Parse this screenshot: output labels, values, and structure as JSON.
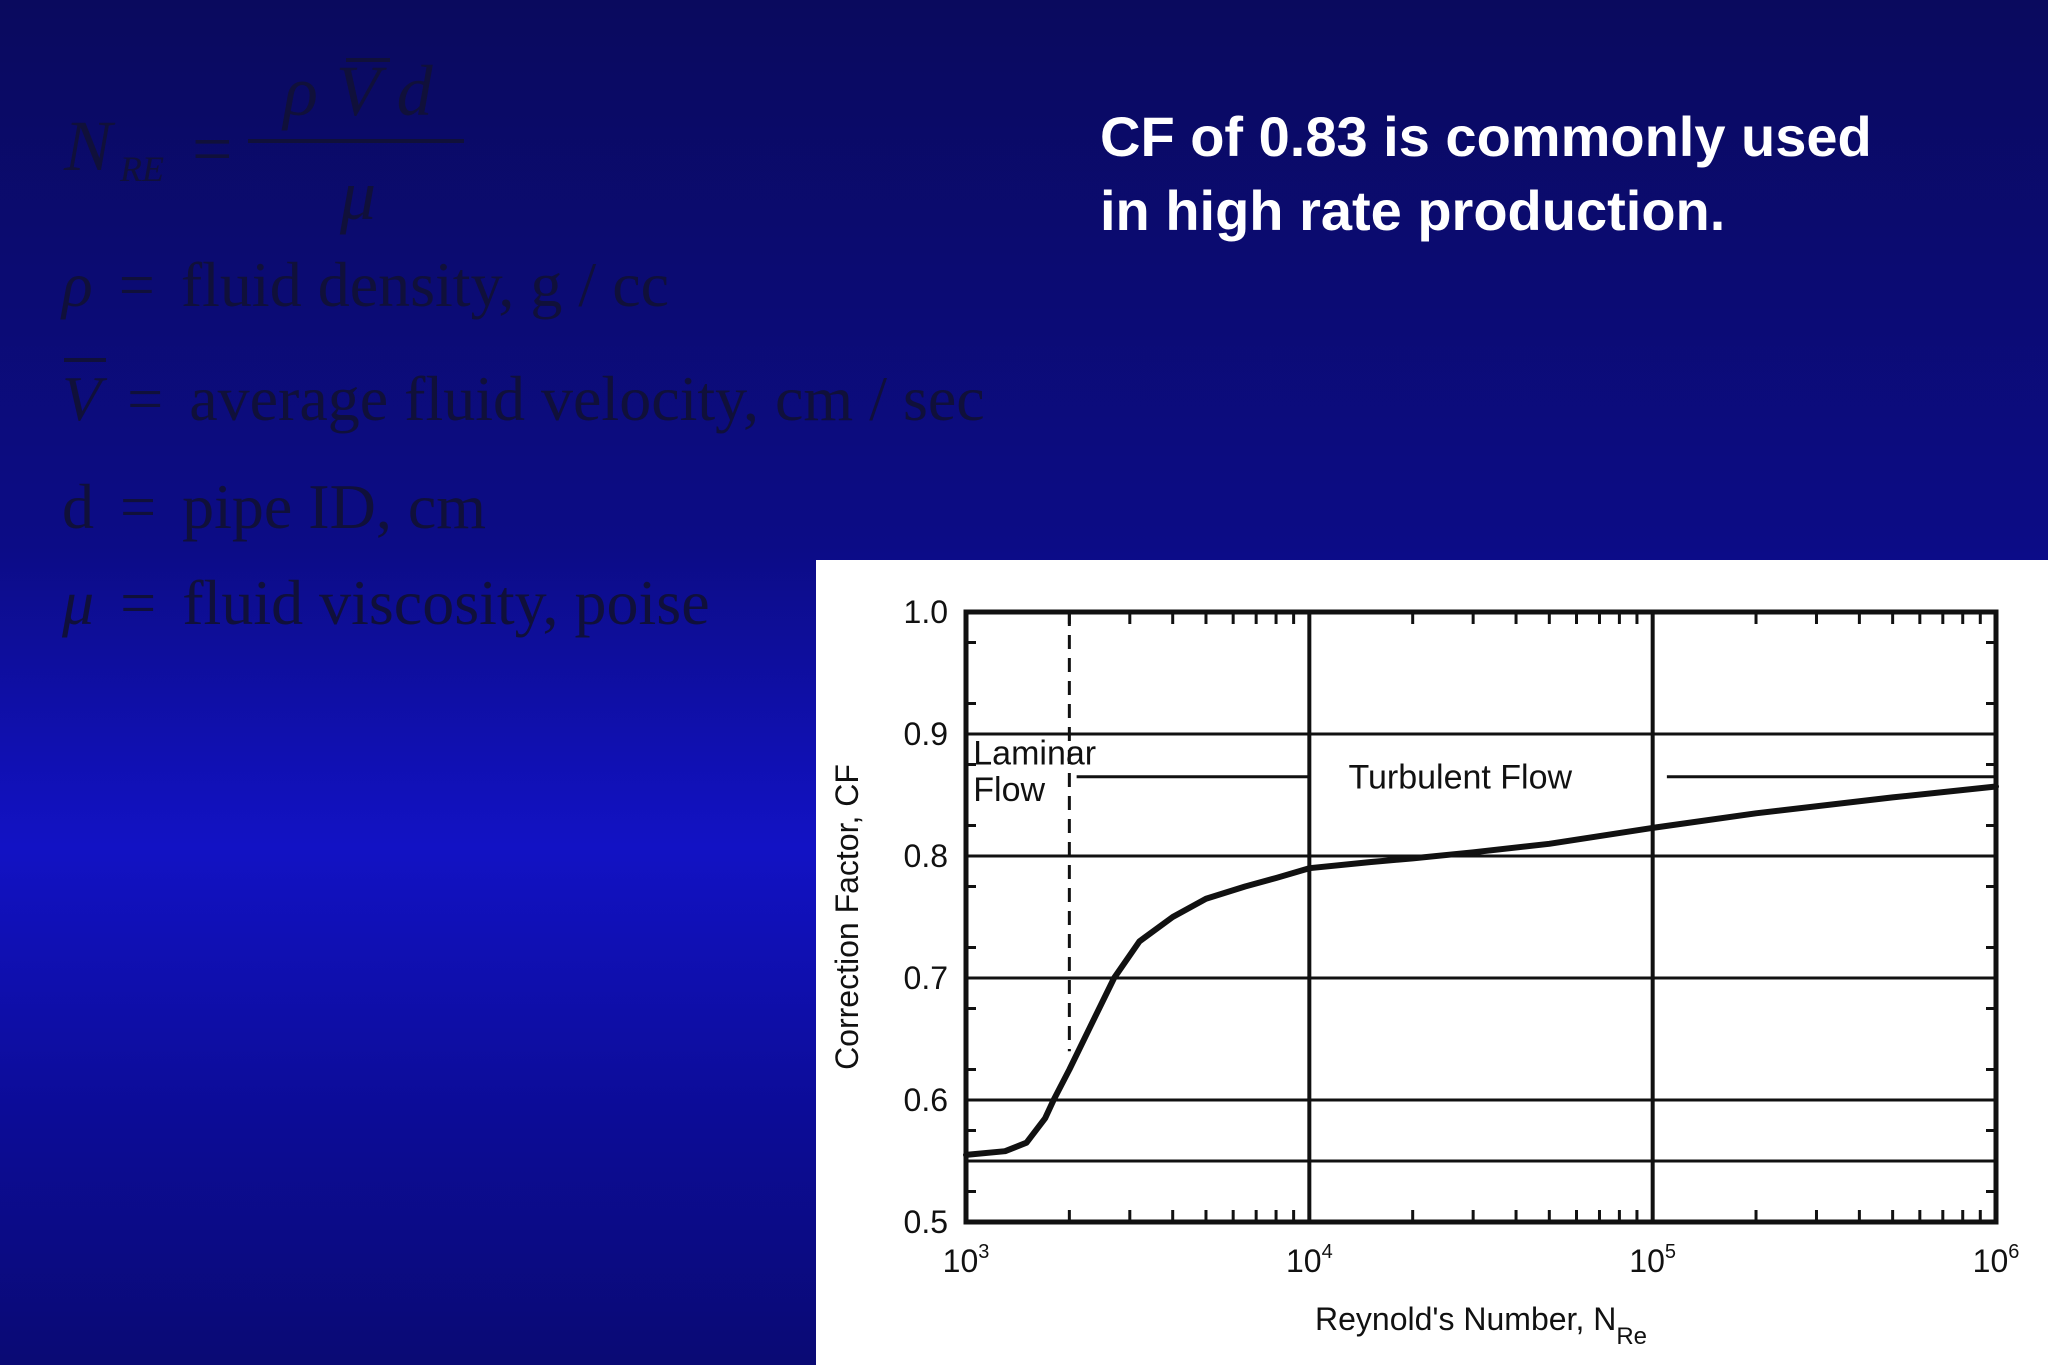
{
  "formula": {
    "lhs_symbol": "N",
    "lhs_subscript": "RE",
    "equals": "=",
    "numerator": "ρ V d",
    "denominator": "μ"
  },
  "definitions": [
    {
      "symbol": "ρ",
      "text": "fluid density,  g / cc"
    },
    {
      "symbol": "V",
      "text": "average fluid velocity,  cm / sec"
    },
    {
      "symbol": "d",
      "text": "pipe ID,  cm"
    },
    {
      "symbol": "μ",
      "text": "fluid viscosity,  poise"
    }
  ],
  "note": {
    "line1": "CF of 0.83 is commonly used",
    "line2": "in high rate production."
  },
  "chart_data": {
    "type": "line",
    "xlabel": "Reynold's Number, N",
    "xlabel_subscript": "Re",
    "ylabel": "Correction Factor, CF",
    "x_scale": "log",
    "xlim": [
      1000,
      1000000
    ],
    "ylim": [
      0.5,
      1.0
    ],
    "x_ticks": [
      {
        "value": 1000,
        "base": "10",
        "exp": "3"
      },
      {
        "value": 10000,
        "base": "10",
        "exp": "4"
      },
      {
        "value": 100000,
        "base": "10",
        "exp": "5"
      },
      {
        "value": 1000000,
        "base": "10",
        "exp": "6"
      }
    ],
    "y_ticks": [
      {
        "value": 0.5,
        "label": "0.5"
      },
      {
        "value": 0.6,
        "label": "0.6"
      },
      {
        "value": 0.7,
        "label": "0.7"
      },
      {
        "value": 0.8,
        "label": "0.8"
      },
      {
        "value": 0.9,
        "label": "0.9"
      },
      {
        "value": 1.0,
        "label": "1.0"
      }
    ],
    "grid": true,
    "gridlines_y": [
      0.55,
      0.6,
      0.7,
      0.8,
      0.9,
      1.0
    ],
    "gridlines_x": [
      10000,
      100000
    ],
    "laminar_boundary_x": 2000,
    "annotations": [
      {
        "text": "Laminar",
        "x": 1050,
        "y": 0.885
      },
      {
        "text": "Flow",
        "x": 1050,
        "y": 0.855
      },
      {
        "text": "Turbulent Flow",
        "x": 13000,
        "y": 0.865
      }
    ],
    "series": [
      {
        "x": [
          1000,
          1300,
          1500,
          1700,
          1800,
          2000,
          2300,
          2700,
          3200,
          4000,
          5000,
          6500,
          8000,
          10000,
          15000,
          20000,
          30000,
          50000,
          100000,
          200000,
          500000,
          1000000
        ],
        "y": [
          0.555,
          0.558,
          0.565,
          0.585,
          0.6,
          0.625,
          0.66,
          0.7,
          0.73,
          0.75,
          0.765,
          0.775,
          0.782,
          0.79,
          0.795,
          0.798,
          0.803,
          0.81,
          0.823,
          0.835,
          0.848,
          0.857
        ]
      }
    ]
  }
}
